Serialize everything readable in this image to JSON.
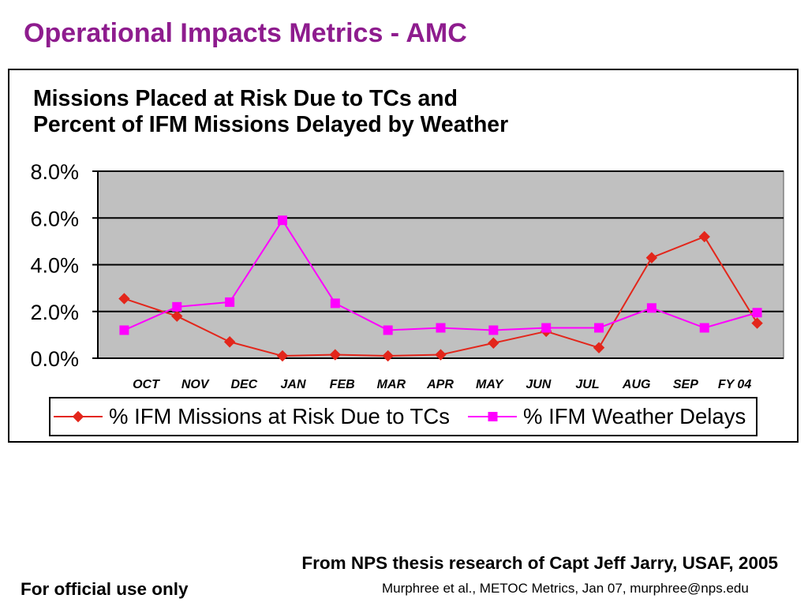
{
  "slide": {
    "title": "Operational Impacts Metrics - AMC"
  },
  "footer": {
    "source_note": "From NPS thesis research of Capt Jeff Jarry, USAF, 2005",
    "marking": "For official use only",
    "citation": "Murphree et al., METOC Metrics, Jan 07, murphree@nps.edu"
  },
  "colors": {
    "title": "#8E1C8E",
    "plot_background": "#C0C0C0"
  },
  "chart_data": {
    "type": "line",
    "title": "Missions Placed at Risk Due to TCs and\nPercent of IFM Missions Delayed by Weather",
    "categories": [
      "OCT",
      "NOV",
      "DEC",
      "JAN",
      "FEB",
      "MAR",
      "APR",
      "MAY",
      "JUN",
      "JUL",
      "AUG",
      "SEP",
      "FY 04"
    ],
    "series": [
      {
        "name": "% IFM Missions at Risk Due to TCs",
        "color": "#E3261B",
        "marker": "diamond",
        "values": [
          2.55,
          1.8,
          0.7,
          0.1,
          0.15,
          0.1,
          0.15,
          0.65,
          1.15,
          0.45,
          4.3,
          5.2,
          1.5
        ]
      },
      {
        "name": "% IFM Weather Delays",
        "color": "#FF00FF",
        "marker": "square",
        "values": [
          1.2,
          2.2,
          2.4,
          5.9,
          2.35,
          1.2,
          1.3,
          1.2,
          1.3,
          1.3,
          2.15,
          1.3,
          1.95
        ]
      }
    ],
    "ylim": [
      0,
      8
    ],
    "yticks": [
      0,
      2,
      4,
      6,
      8
    ],
    "ytick_labels": [
      "0.0%",
      "2.0%",
      "4.0%",
      "6.0%",
      "8.0%"
    ],
    "grid": "horizontal",
    "legend": "bottom"
  }
}
